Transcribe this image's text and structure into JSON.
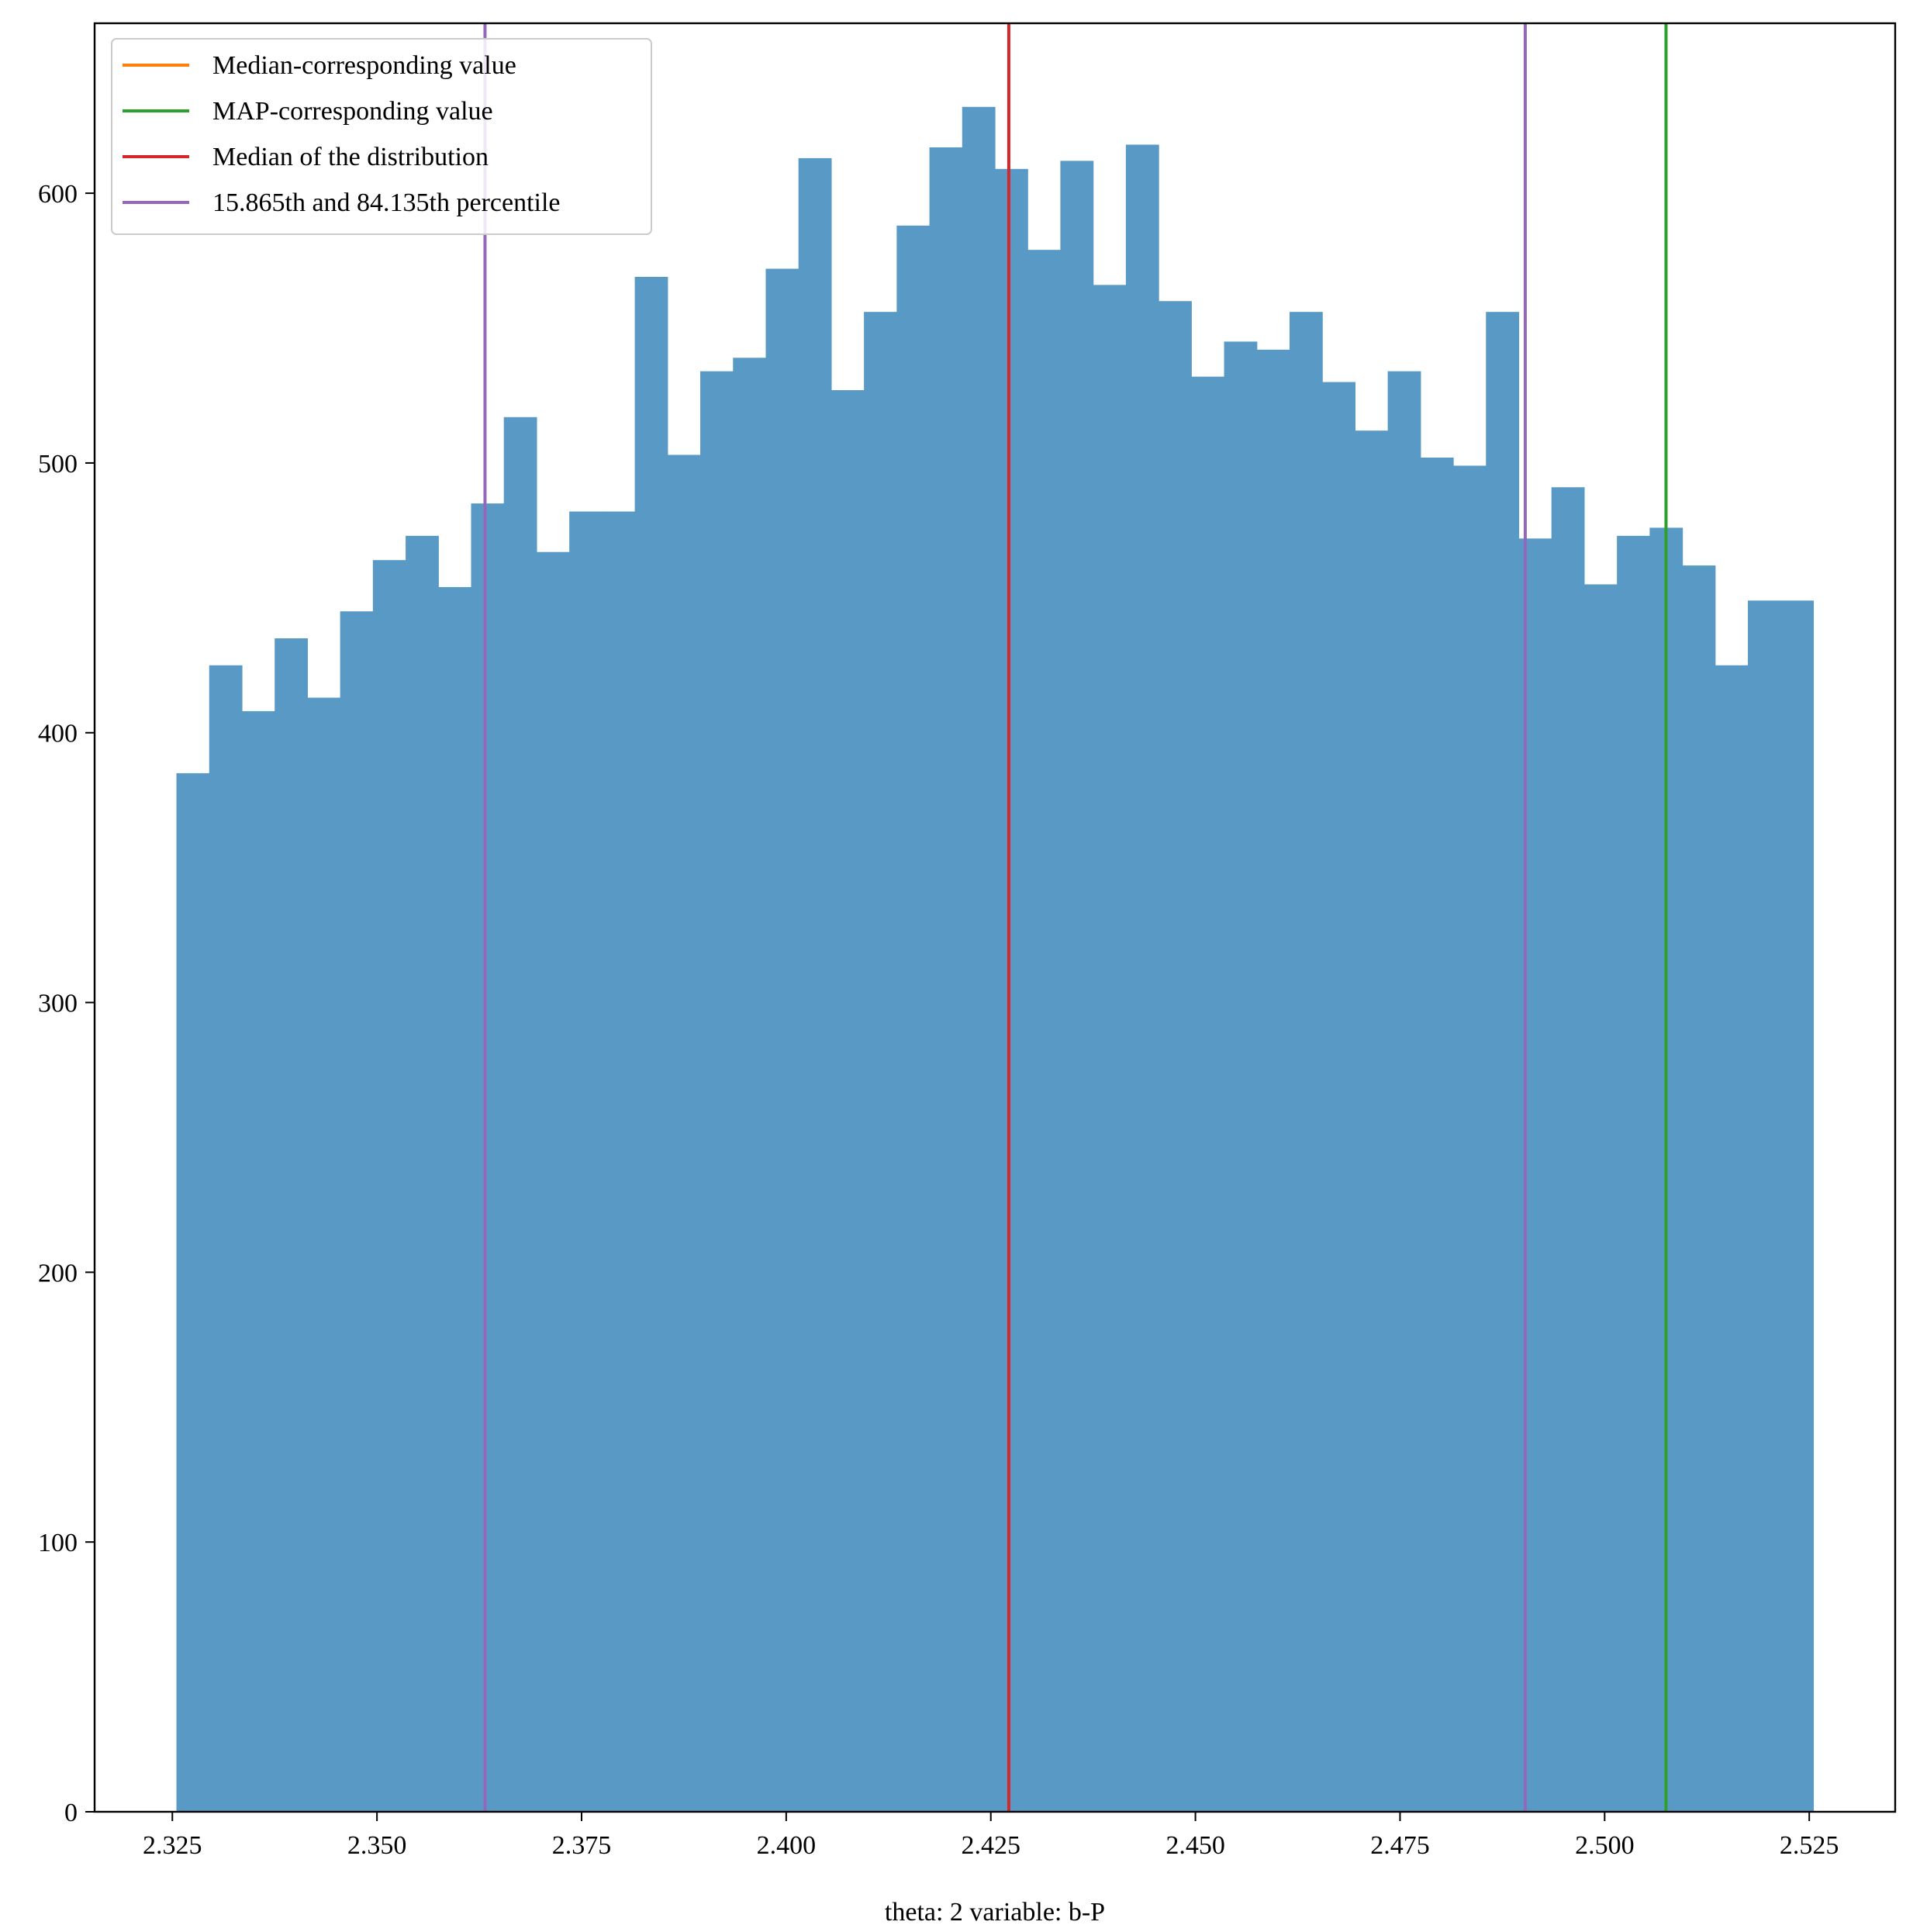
{
  "chart_data": {
    "type": "bar",
    "subtype": "histogram",
    "title": "",
    "xlabel": "theta: 2 variable: b-P",
    "ylabel": "",
    "xlim": [
      2.3155,
      2.5355
    ],
    "ylim": [
      0,
      663
    ],
    "grid": false,
    "bar_color": "#5899c6",
    "bin_edges": [
      2.3255,
      2.3295,
      2.3335,
      2.3375,
      2.3415,
      2.3455,
      2.3495,
      2.3535,
      2.3575,
      2.3615,
      2.3655,
      2.3695,
      2.3735,
      2.3775,
      2.3815,
      2.3855,
      2.3895,
      2.3935,
      2.3975,
      2.4015,
      2.4055,
      2.4095,
      2.4135,
      2.4175,
      2.4215,
      2.4255,
      2.4295,
      2.4335,
      2.4375,
      2.4415,
      2.4455,
      2.4495,
      2.4535,
      2.4575,
      2.4615,
      2.4655,
      2.4695,
      2.4735,
      2.4775,
      2.4815,
      2.4855,
      2.4895,
      2.4935,
      2.4975,
      2.5015,
      2.5055,
      2.5095,
      2.5135,
      2.5175,
      2.5215,
      2.5255
    ],
    "counts": [
      385,
      425,
      408,
      435,
      413,
      445,
      464,
      473,
      454,
      485,
      517,
      467,
      482,
      482,
      569,
      503,
      534,
      539,
      572,
      613,
      527,
      556,
      588,
      617,
      632,
      609,
      579,
      612,
      566,
      618,
      560,
      532,
      545,
      542,
      556,
      530,
      512,
      534,
      502,
      499,
      556,
      472,
      491,
      455,
      473,
      476,
      462,
      425,
      449,
      449
    ],
    "xticks": [
      2.325,
      2.35,
      2.375,
      2.4,
      2.425,
      2.45,
      2.475,
      2.5,
      2.525
    ],
    "xtick_labels": [
      "2.325",
      "2.350",
      "2.375",
      "2.400",
      "2.425",
      "2.450",
      "2.475",
      "2.500",
      "2.525"
    ],
    "yticks": [
      0,
      100,
      200,
      300,
      400,
      500,
      600
    ],
    "ytick_labels": [
      "0",
      "100",
      "200",
      "300",
      "400",
      "500",
      "600"
    ],
    "vlines": [
      {
        "name": "Median-corresponding value",
        "x": 2.5075,
        "color": "#ff7f0e"
      },
      {
        "name": "MAP-corresponding value",
        "x": 2.5075,
        "color": "#2ca02c"
      },
      {
        "name": "Median of the distribution",
        "x": 2.4272,
        "color": "#d62728"
      },
      {
        "name": "15.865th and 84.135th percentile",
        "x": 2.3632,
        "color": "#9467bd"
      },
      {
        "name": "15.865th and 84.135th percentile",
        "x": 2.4903,
        "color": "#9467bd"
      }
    ],
    "legend": {
      "placement": "top-left",
      "entries": [
        {
          "label": "Median-corresponding value",
          "color": "#ff7f0e"
        },
        {
          "label": "MAP-corresponding value",
          "color": "#2ca02c"
        },
        {
          "label": "Median of the distribution",
          "color": "#d62728"
        },
        {
          "label": "15.865th and 84.135th percentile",
          "color": "#9467bd"
        }
      ]
    }
  }
}
